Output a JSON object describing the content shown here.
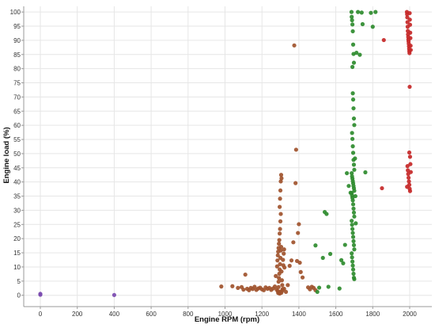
{
  "chart_data": {
    "type": "scatter",
    "title": "",
    "xlabel": "Engine RPM (rpm)",
    "ylabel": "Engine load (%)",
    "xlim": [
      -90,
      2120
    ],
    "ylim": [
      -4,
      102
    ],
    "x_ticks": [
      0,
      200,
      400,
      600,
      800,
      1000,
      1200,
      1400,
      1600,
      1800,
      2000
    ],
    "y_ticks": [
      0,
      5,
      10,
      15,
      20,
      25,
      30,
      35,
      40,
      45,
      50,
      55,
      60,
      65,
      70,
      75,
      80,
      85,
      90,
      95,
      100
    ],
    "grid": true,
    "legend": "none",
    "series": [
      {
        "color": "#7b4bb0",
        "points": [
          [
            0,
            0.2
          ],
          [
            0,
            0.5
          ],
          [
            400,
            0.1
          ]
        ]
      },
      {
        "color": "#a0522d",
        "points": [
          [
            980,
            3.1
          ],
          [
            1040,
            3.2
          ],
          [
            1070,
            2.6
          ],
          [
            1090,
            2.9
          ],
          [
            1110,
            7.3
          ],
          [
            1100,
            2.0
          ],
          [
            1120,
            2.3
          ],
          [
            1130,
            1.8
          ],
          [
            1140,
            2.6
          ],
          [
            1150,
            2.2
          ],
          [
            1160,
            3.0
          ],
          [
            1170,
            1.9
          ],
          [
            1180,
            2.4
          ],
          [
            1190,
            2.7
          ],
          [
            1200,
            2.1
          ],
          [
            1210,
            1.8
          ],
          [
            1220,
            2.8
          ],
          [
            1230,
            2.3
          ],
          [
            1240,
            2.6
          ],
          [
            1250,
            1.9
          ],
          [
            1260,
            2.4
          ],
          [
            1270,
            3.1
          ],
          [
            1275,
            6.8
          ],
          [
            1280,
            2.0
          ],
          [
            1285,
            1.5
          ],
          [
            1290,
            2.9
          ],
          [
            1282,
            10.2
          ],
          [
            1284,
            12.3
          ],
          [
            1286,
            14.1
          ],
          [
            1288,
            15.4
          ],
          [
            1290,
            16.7
          ],
          [
            1292,
            18.2
          ],
          [
            1294,
            19.5
          ],
          [
            1296,
            21.8
          ],
          [
            1298,
            23.4
          ],
          [
            1300,
            26.1
          ],
          [
            1302,
            28.7
          ],
          [
            1296,
            31.2
          ],
          [
            1298,
            34.1
          ],
          [
            1300,
            37.0
          ],
          [
            1302,
            40.2
          ],
          [
            1304,
            42.5
          ],
          [
            1306,
            41.3
          ],
          [
            1290,
            4.8
          ],
          [
            1292,
            6.1
          ],
          [
            1294,
            7.6
          ],
          [
            1296,
            9.1
          ],
          [
            1298,
            11.0
          ],
          [
            1300,
            13.2
          ],
          [
            1302,
            15.8
          ],
          [
            1304,
            17.1
          ],
          [
            1306,
            8.4
          ],
          [
            1308,
            5.3
          ],
          [
            1310,
            3.6
          ],
          [
            1312,
            2.2
          ],
          [
            1314,
            12.5
          ],
          [
            1316,
            10.6
          ],
          [
            1318,
            14.7
          ],
          [
            1320,
            16.2
          ],
          [
            1322,
            9.8
          ],
          [
            1288,
            0.8
          ],
          [
            1292,
            1.1
          ],
          [
            1296,
            0.6
          ],
          [
            1300,
            1.3
          ],
          [
            1305,
            0.9
          ],
          [
            1310,
            1.6
          ],
          [
            1320,
            2.3
          ],
          [
            1330,
            1.2
          ],
          [
            1340,
            3.6
          ],
          [
            1350,
            10.4
          ],
          [
            1360,
            12.3
          ],
          [
            1370,
            18.7
          ],
          [
            1375,
            88.2
          ],
          [
            1382,
            39.6
          ],
          [
            1385,
            51.4
          ],
          [
            1390,
            12.1
          ],
          [
            1395,
            22.0
          ],
          [
            1400,
            25.1
          ],
          [
            1405,
            11.5
          ],
          [
            1410,
            8.2
          ],
          [
            1420,
            6.3
          ],
          [
            1450,
            2.8
          ],
          [
            1460,
            2.1
          ],
          [
            1470,
            3.0
          ],
          [
            1480,
            2.6
          ],
          [
            1490,
            1.8
          ]
        ]
      },
      {
        "color": "#2e8b2e",
        "points": [
          [
            1490,
            17.6
          ],
          [
            1500,
            1.2
          ],
          [
            1510,
            2.7
          ],
          [
            1530,
            13.2
          ],
          [
            1540,
            29.4
          ],
          [
            1550,
            28.7
          ],
          [
            1560,
            3.0
          ],
          [
            1570,
            14.6
          ],
          [
            1620,
            2.4
          ],
          [
            1630,
            12.4
          ],
          [
            1640,
            11.3
          ],
          [
            1650,
            17.8
          ],
          [
            1660,
            43.1
          ],
          [
            1670,
            38.6
          ],
          [
            1680,
            36.2
          ],
          [
            1685,
            100.0
          ],
          [
            1686,
            98.3
          ],
          [
            1688,
            97.1
          ],
          [
            1690,
            95.6
          ],
          [
            1692,
            93.2
          ],
          [
            1694,
            88.5
          ],
          [
            1696,
            85.2
          ],
          [
            1698,
            82.1
          ],
          [
            1690,
            80.6
          ],
          [
            1692,
            71.3
          ],
          [
            1694,
            69.1
          ],
          [
            1696,
            66.0
          ],
          [
            1698,
            62.4
          ],
          [
            1700,
            60.1
          ],
          [
            1688,
            57.3
          ],
          [
            1690,
            55.2
          ],
          [
            1692,
            52.6
          ],
          [
            1694,
            50.3
          ],
          [
            1696,
            47.8
          ],
          [
            1698,
            46.1
          ],
          [
            1700,
            44.3
          ],
          [
            1686,
            43.1
          ],
          [
            1688,
            42.0
          ],
          [
            1690,
            41.2
          ],
          [
            1692,
            40.3
          ],
          [
            1694,
            39.5
          ],
          [
            1696,
            38.6
          ],
          [
            1698,
            37.8
          ],
          [
            1700,
            36.9
          ],
          [
            1686,
            36.1
          ],
          [
            1688,
            35.2
          ],
          [
            1690,
            34.4
          ],
          [
            1692,
            33.5
          ],
          [
            1694,
            32.1
          ],
          [
            1696,
            30.6
          ],
          [
            1698,
            29.2
          ],
          [
            1700,
            27.8
          ],
          [
            1686,
            26.3
          ],
          [
            1688,
            24.9
          ],
          [
            1690,
            23.4
          ],
          [
            1692,
            22.0
          ],
          [
            1694,
            20.6
          ],
          [
            1696,
            19.1
          ],
          [
            1698,
            17.7
          ],
          [
            1700,
            16.2
          ],
          [
            1686,
            14.8
          ],
          [
            1688,
            13.4
          ],
          [
            1690,
            11.9
          ],
          [
            1692,
            10.5
          ],
          [
            1694,
            9.1
          ],
          [
            1696,
            7.6
          ],
          [
            1698,
            6.2
          ],
          [
            1700,
            5.7
          ],
          [
            1704,
            48.3
          ],
          [
            1706,
            35.0
          ],
          [
            1708,
            25.4
          ],
          [
            1712,
            85.6
          ],
          [
            1720,
            100.0
          ],
          [
            1730,
            84.9
          ],
          [
            1740,
            99.8
          ],
          [
            1745,
            95.7
          ],
          [
            1760,
            43.4
          ],
          [
            1790,
            99.7
          ],
          [
            1800,
            94.8
          ],
          [
            1815,
            100.0
          ]
        ]
      },
      {
        "color": "#c62828",
        "points": [
          [
            1850,
            37.8
          ],
          [
            1860,
            90.1
          ],
          [
            1985,
            100.0
          ],
          [
            1986,
            99.2
          ],
          [
            1987,
            98.1
          ],
          [
            1988,
            96.4
          ],
          [
            1989,
            94.8
          ],
          [
            1990,
            93.3
          ],
          [
            1991,
            92.1
          ],
          [
            1992,
            91.2
          ],
          [
            1993,
            90.3
          ],
          [
            1994,
            89.6
          ],
          [
            1995,
            88.8
          ],
          [
            1996,
            87.9
          ],
          [
            1997,
            87.0
          ],
          [
            1998,
            86.2
          ],
          [
            1999,
            85.5
          ],
          [
            2000,
            99.6
          ],
          [
            2001,
            97.3
          ],
          [
            2002,
            95.5
          ],
          [
            2003,
            92.7
          ],
          [
            2004,
            90.8
          ],
          [
            2005,
            88.1
          ],
          [
            2006,
            86.6
          ],
          [
            1988,
            45.6
          ],
          [
            1990,
            44.1
          ],
          [
            1992,
            42.8
          ],
          [
            1994,
            41.5
          ],
          [
            1996,
            40.2
          ],
          [
            1998,
            39.0
          ],
          [
            2000,
            37.6
          ],
          [
            2002,
            36.8
          ],
          [
            2004,
            46.3
          ],
          [
            2006,
            43.5
          ],
          [
            1986,
            38.3
          ],
          [
            1998,
            50.4
          ],
          [
            2000,
            73.6
          ],
          [
            2002,
            48.9
          ]
        ]
      }
    ]
  }
}
